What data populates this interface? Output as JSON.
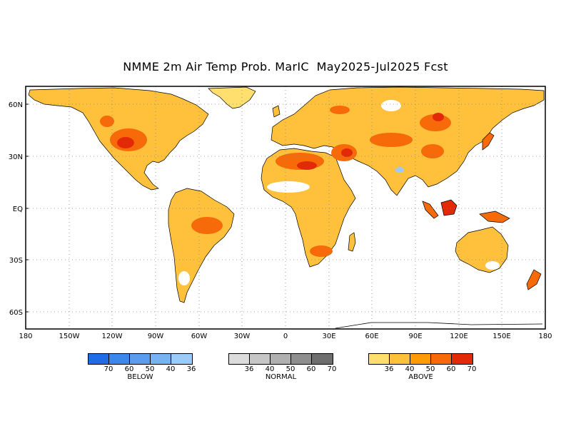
{
  "title": "NMME 2m Air Temp Prob. MarIC  May2025-Jul2025 Fcst",
  "map": {
    "lat_labels": [
      "60N",
      "30N",
      "EQ",
      "30S",
      "60S"
    ],
    "lon_labels": [
      "180",
      "150W",
      "120W",
      "90W",
      "60W",
      "30W",
      "0",
      "30E",
      "60E",
      "90E",
      "120E",
      "150E",
      "180"
    ],
    "gridlines": "dotted",
    "ocean_color": "#ffffff",
    "coast_color": "#000000"
  },
  "legends": [
    {
      "caption": "BELOW",
      "colors": [
        "#1e6ce6",
        "#3c87ea",
        "#5a9cee",
        "#78b2f2",
        "#9ccbf8"
      ],
      "ticks": [
        "70",
        "60",
        "50",
        "40",
        "36"
      ]
    },
    {
      "caption": "NORMAL",
      "colors": [
        "#dcdcdc",
        "#c6c6c6",
        "#b0b0b0",
        "#8e8e8e",
        "#6e6e6e"
      ],
      "ticks": [
        "36",
        "40",
        "50",
        "60",
        "70"
      ]
    },
    {
      "caption": "ABOVE",
      "colors": [
        "#ffe06e",
        "#ffc03c",
        "#ff9a08",
        "#f66a0a",
        "#e22a08"
      ],
      "ticks": [
        "36",
        "40",
        "50",
        "60",
        "70"
      ]
    }
  ]
}
